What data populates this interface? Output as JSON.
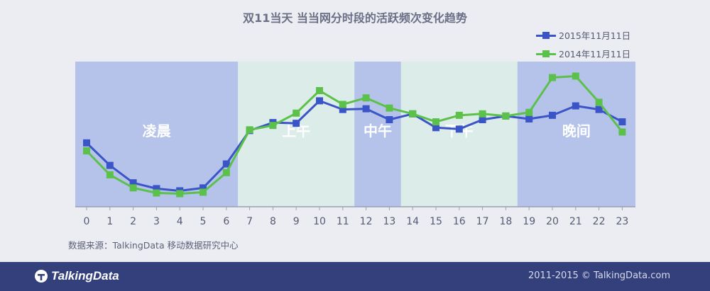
{
  "chart_data": {
    "type": "line",
    "title": "双11当天 当当网分时段的活跃频次变化趋势",
    "x": [
      0,
      1,
      2,
      3,
      4,
      5,
      6,
      7,
      8,
      9,
      10,
      11,
      12,
      13,
      14,
      15,
      16,
      17,
      18,
      19,
      20,
      21,
      22,
      23
    ],
    "series": [
      {
        "name": "2015年11月11日",
        "color": "#3a55c8",
        "values": [
          88,
          57,
          33,
          25,
          22,
          26,
          59,
          105,
          116,
          115,
          146,
          134,
          135,
          120,
          128,
          109,
          107,
          120,
          125,
          121,
          126,
          139,
          134,
          117
        ]
      },
      {
        "name": "2014年11月11日",
        "color": "#5cc14a",
        "values": [
          77,
          44,
          26,
          19,
          18,
          20,
          47,
          106,
          112,
          129,
          160,
          141,
          150,
          136,
          128,
          117,
          126,
          128,
          125,
          130,
          178,
          180,
          144,
          103
        ]
      }
    ],
    "bands": [
      {
        "label": "凌晨",
        "from": 0,
        "to": 6.5,
        "color": "#b5c2e9"
      },
      {
        "label": "上午",
        "from": 6.5,
        "to": 11.5,
        "color": "#dcece8"
      },
      {
        "label": "中午",
        "from": 11.5,
        "to": 13.5,
        "color": "#b5c2e9"
      },
      {
        "label": "下午",
        "from": 13.5,
        "to": 18.5,
        "color": "#dcece8"
      },
      {
        "label": "晚间",
        "from": 18.5,
        "to": 23.5,
        "color": "#b5c2e9"
      }
    ],
    "ylim": [
      0,
      200
    ],
    "grid": false,
    "legend_position": "top-right"
  },
  "source": "数据来源：TalkingData 移动数据研究中心",
  "footer": {
    "logo_text": "TalkingData",
    "copyright": "2011-2015 © TalkingData.com"
  }
}
